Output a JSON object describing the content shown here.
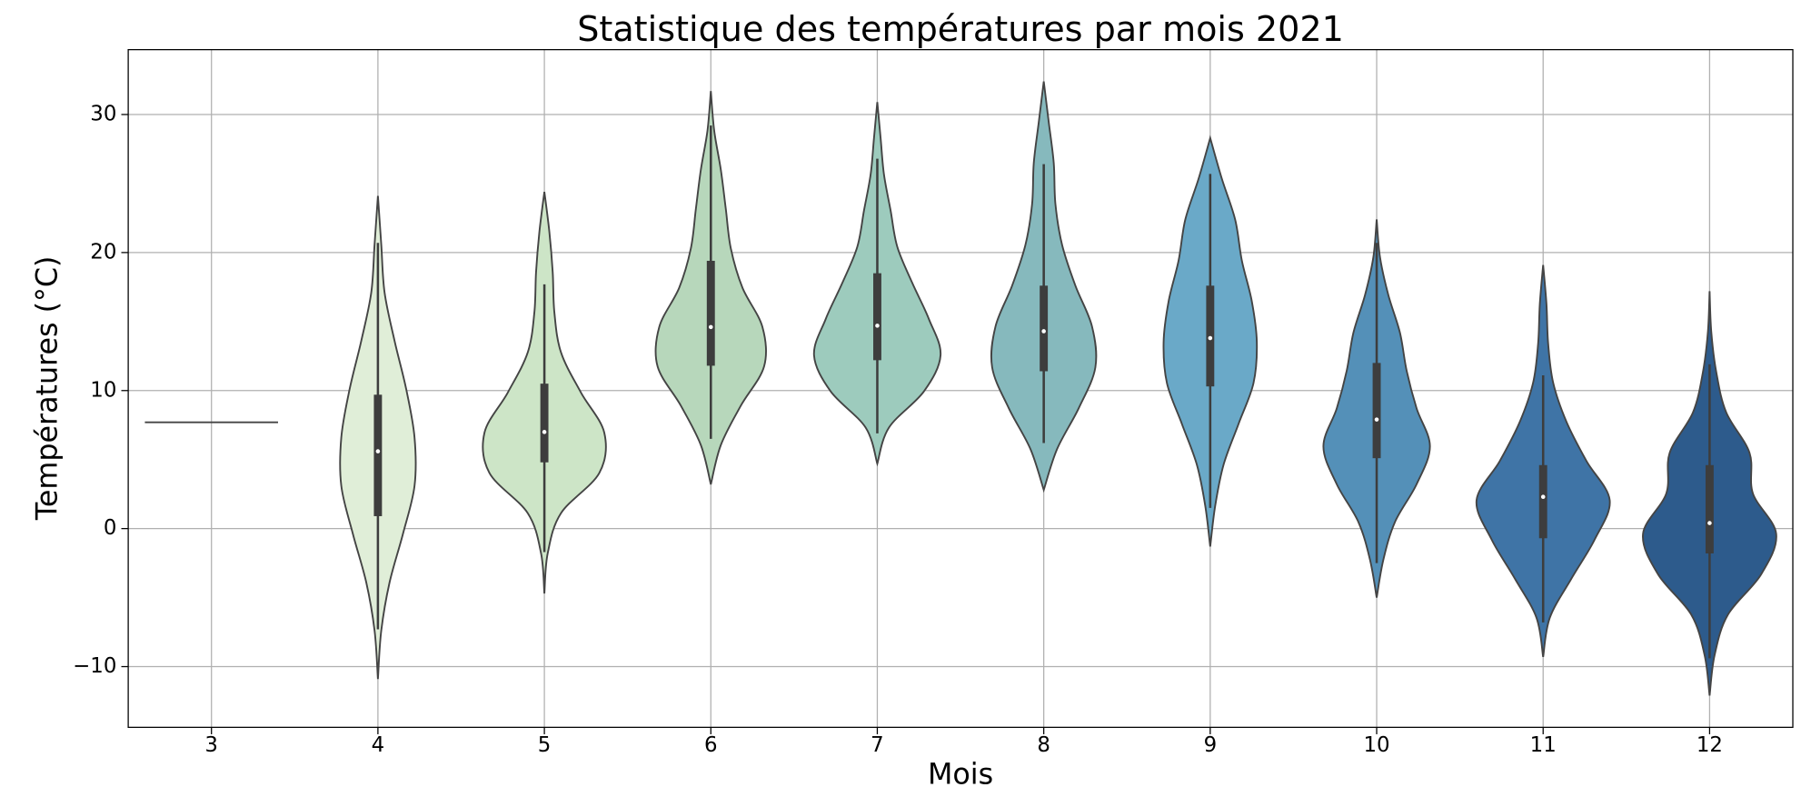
{
  "chart_data": {
    "type": "violin",
    "title": "Statistique des températures par mois 2021",
    "x_label": "Mois",
    "y_label": "Températures (°C)",
    "ylim": [
      -14.4,
      34.7
    ],
    "yticks": [
      {
        "value": -10,
        "label": "−10"
      },
      0,
      10,
      20,
      30
    ],
    "grid": true,
    "categories": [
      "3",
      "4",
      "5",
      "6",
      "7",
      "8",
      "9",
      "10",
      "11",
      "12"
    ],
    "violins": [
      {
        "color": "#444444",
        "median": 7.7
      },
      {
        "color": "#e0eed8",
        "min": -10.9,
        "max": 24.1,
        "q1": 0.9,
        "median": 5.6,
        "q3": 9.7,
        "whisker_low": -7.3,
        "whisker_high": 20.7,
        "density": [
          0,
          0.02,
          0.07,
          0.15,
          0.22,
          0.22,
          0.17,
          0.1,
          0.04,
          0.02,
          0
        ]
      },
      {
        "color": "#cde5c7",
        "min": -4.7,
        "max": 24.4,
        "q1": 4.8,
        "median": 7.0,
        "q3": 10.5,
        "whisker_low": -1.7,
        "whisker_high": 17.7,
        "density": [
          0,
          0.02,
          0.1,
          0.33,
          0.36,
          0.22,
          0.1,
          0.06,
          0.05,
          0.03,
          0
        ]
      },
      {
        "color": "#b7d7bb",
        "min": 3.2,
        "max": 31.7,
        "q1": 11.8,
        "median": 14.6,
        "q3": 19.4,
        "whisker_low": 6.5,
        "whisker_high": 29.2,
        "density": [
          0,
          0.06,
          0.18,
          0.32,
          0.31,
          0.19,
          0.12,
          0.09,
          0.06,
          0.02,
          0
        ]
      },
      {
        "color": "#9dcbbd",
        "min": 4.7,
        "max": 30.9,
        "q1": 12.2,
        "median": 14.7,
        "q3": 18.5,
        "whisker_low": 6.9,
        "whisker_high": 26.8,
        "density": [
          0,
          0.07,
          0.28,
          0.38,
          0.31,
          0.21,
          0.12,
          0.08,
          0.04,
          0.02,
          0
        ]
      },
      {
        "color": "#86b9bd",
        "min": 2.8,
        "max": 32.4,
        "q1": 11.4,
        "median": 14.3,
        "q3": 17.6,
        "whisker_low": 6.2,
        "whisker_high": 26.4,
        "density": [
          0,
          0.08,
          0.21,
          0.31,
          0.29,
          0.19,
          0.11,
          0.07,
          0.06,
          0.03,
          0
        ]
      },
      {
        "color": "#6aa9c8",
        "min": -1.3,
        "max": 28.3,
        "q1": 10.3,
        "median": 13.8,
        "q3": 17.6,
        "whisker_low": 1.5,
        "whisker_high": 25.7,
        "density": [
          0,
          0.03,
          0.08,
          0.17,
          0.26,
          0.28,
          0.25,
          0.19,
          0.15,
          0.07,
          0
        ]
      },
      {
        "color": "#5490b8",
        "min": -5.0,
        "max": 22.4,
        "q1": 5.1,
        "median": 7.9,
        "q3": 12.0,
        "whisker_low": -2.5,
        "whisker_high": 20.7,
        "density": [
          0,
          0.04,
          0.11,
          0.24,
          0.32,
          0.24,
          0.18,
          0.14,
          0.07,
          0.02,
          0
        ]
      },
      {
        "color": "#3f74a6",
        "min": -9.3,
        "max": 19.1,
        "q1": -0.7,
        "median": 2.3,
        "q3": 4.6,
        "whisker_low": -6.8,
        "whisker_high": 11.1,
        "density": [
          0,
          0.04,
          0.17,
          0.31,
          0.4,
          0.26,
          0.14,
          0.06,
          0.03,
          0.02,
          0
        ]
      },
      {
        "color": "#2d5b8c",
        "min": -12.1,
        "max": 17.2,
        "q1": -1.8,
        "median": 0.4,
        "q3": 4.6,
        "whisker_low": -9.4,
        "whisker_high": 11.9,
        "density": [
          0,
          0.03,
          0.11,
          0.31,
          0.4,
          0.26,
          0.24,
          0.1,
          0.04,
          0.01,
          0
        ]
      }
    ]
  }
}
